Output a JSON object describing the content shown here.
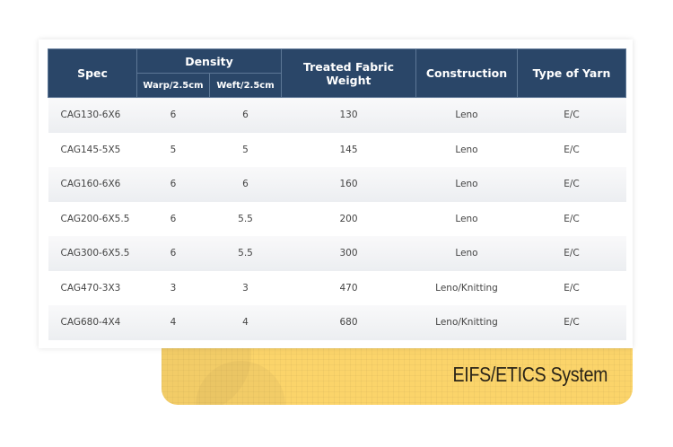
{
  "table": {
    "headers": {
      "spec": "Spec",
      "density": "Density",
      "warp": "Warp/2.5cm",
      "weft": "Weft/2.5cm",
      "weight": "Treated Fabric Weight",
      "construction": "Construction",
      "yarn": "Type of Yarn"
    },
    "rows": [
      [
        "CAG130-6X6",
        "6",
        "6",
        "130",
        "Leno",
        "E/C"
      ],
      [
        "CAG145-5X5",
        "5",
        "5",
        "145",
        "Leno",
        "E/C"
      ],
      [
        "CAG160-6X6",
        "6",
        "6",
        "160",
        "Leno",
        "E/C"
      ],
      [
        "CAG200-6X5.5",
        "6",
        "5.5",
        "200",
        "Leno",
        "E/C"
      ],
      [
        "CAG300-6X5.5",
        "6",
        "5.5",
        "300",
        "Leno",
        "E/C"
      ],
      [
        "CAG470-3X3",
        "3",
        "3",
        "470",
        "Leno/Knitting",
        "E/C"
      ],
      [
        "CAG680-4X4",
        "4",
        "4",
        "680",
        "Leno/Knitting",
        "E/C"
      ]
    ]
  },
  "banner": {
    "label": "EIFS/ETICS System"
  },
  "colors": {
    "header": "#2a4668",
    "banner": "#fbd46a"
  }
}
